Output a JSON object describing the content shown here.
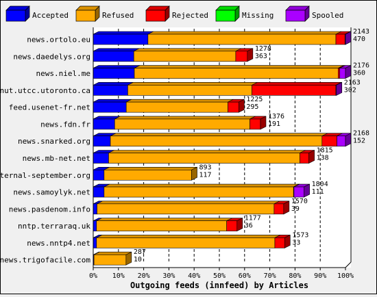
{
  "chart_data": {
    "type": "bar",
    "orientation": "horizontal",
    "stacked": true,
    "xlabel": "Outgoing feeds (innfeed) by Articles",
    "xlim": [
      0,
      100
    ],
    "x_unit": "percent",
    "x_ticks": [
      "0%",
      "10%",
      "20%",
      "30%",
      "40%",
      "50%",
      "60%",
      "70%",
      "80%",
      "90%",
      "100%"
    ],
    "grid": true,
    "legend_position": "top",
    "legend": [
      {
        "name": "Accepted",
        "color": "#0000ff"
      },
      {
        "name": "Refused",
        "color": "#ffaa00"
      },
      {
        "name": "Rejected",
        "color": "#ff0000"
      },
      {
        "name": "Missing",
        "color": "#00ff00"
      },
      {
        "name": "Spooled",
        "color": "#aa00ff"
      }
    ],
    "categories": [
      "news.ortolo.eu",
      "news.daedelys.org",
      "news.niel.me",
      "nut.utcc.utoronto.ca",
      "feed.usenet-fr.net",
      "news.fdn.fr",
      "news.snarked.org",
      "news.mb-net.net",
      "eternal-september.org",
      "news.samoylyk.net",
      "news.pasdenom.info",
      "nntp.terraraq.uk",
      "news.nntp4.net",
      "news.trigofacile.com"
    ],
    "bar_labels": [
      [
        "2143",
        "470"
      ],
      [
        "1278",
        "363"
      ],
      [
        "2176",
        "360"
      ],
      [
        "2163",
        "302"
      ],
      [
        "1225",
        "295"
      ],
      [
        "1376",
        "191"
      ],
      [
        "2168",
        "152"
      ],
      [
        "1815",
        "138"
      ],
      [
        "893",
        "117"
      ],
      [
        "1804",
        "111"
      ],
      [
        "1570",
        "39"
      ],
      [
        "1177",
        "36"
      ],
      [
        "1573",
        "33"
      ],
      [
        "287",
        "10"
      ]
    ],
    "series": [
      {
        "name": "Accepted",
        "values": [
          21.7,
          16.1,
          16.3,
          13.7,
          13.1,
          8.5,
          6.8,
          6.1,
          4.3,
          4.3,
          1.5,
          1.3,
          1.3,
          0.3
        ]
      },
      {
        "name": "Refused",
        "values": [
          74.5,
          40.4,
          80.8,
          49.2,
          40.3,
          53.6,
          83.9,
          75.8,
          34.7,
          75.1,
          70.2,
          51.6,
          70.7,
          12.7
        ]
      },
      {
        "name": "Rejected",
        "values": [
          3.6,
          4.6,
          0.6,
          33.3,
          4.3,
          4.2,
          5.9,
          3.6,
          0.0,
          0.2,
          3.8,
          4.1,
          3.9,
          0.0
        ]
      },
      {
        "name": "Missing",
        "values": [
          0,
          0,
          0,
          0,
          0,
          0,
          0,
          0,
          0,
          0,
          0,
          0,
          0,
          0
        ]
      },
      {
        "name": "Spooled",
        "values": [
          0.2,
          0.0,
          2.3,
          0.2,
          0.0,
          0.0,
          3.4,
          0.0,
          0.0,
          4.0,
          0.0,
          0.0,
          0.0,
          0.0
        ]
      }
    ]
  }
}
